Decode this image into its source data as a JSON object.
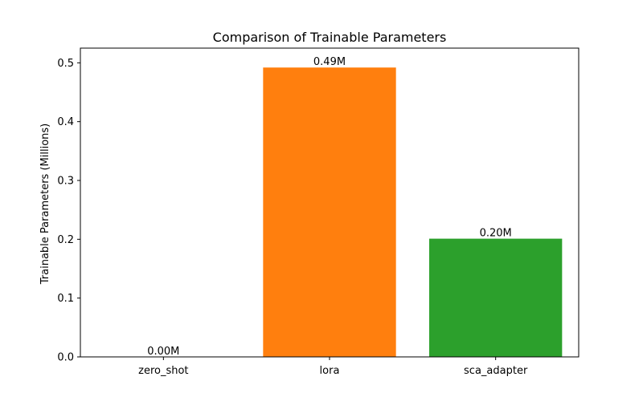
{
  "chart_data": {
    "type": "bar",
    "title": "Comparison of Trainable Parameters",
    "xlabel": "",
    "ylabel": "Trainable Parameters (Millions)",
    "categories": [
      "zero_shot",
      "lora",
      "sca_adapter"
    ],
    "values": [
      0.0,
      0.492,
      0.201
    ],
    "data_labels": [
      "0.00M",
      "0.49M",
      "0.20M"
    ],
    "colors": [
      "#1f77b4",
      "#ff7f0e",
      "#2ca02c"
    ],
    "ylim": [
      0,
      0.525
    ],
    "yticks": [
      0.0,
      0.1,
      0.2,
      0.3,
      0.4,
      0.5
    ],
    "ytick_labels": [
      "0.0",
      "0.1",
      "0.2",
      "0.3",
      "0.4",
      "0.5"
    ],
    "grid": false,
    "legend": "none"
  }
}
